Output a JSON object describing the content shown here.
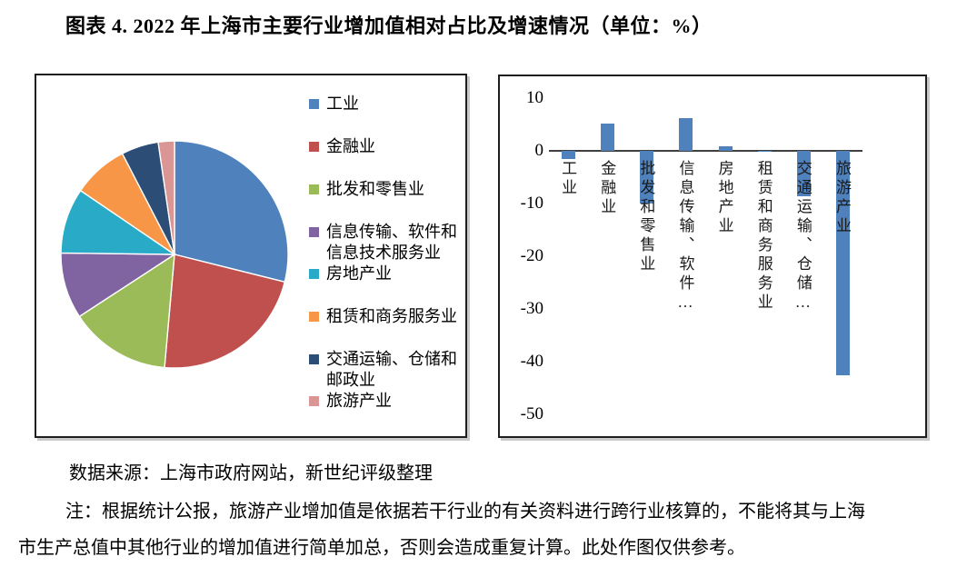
{
  "page": {
    "title": "图表 4. 2022 年上海市主要行业增加值相对占比及增速情况（单位：%）",
    "source": "数据来源：上海市政府网站，新世纪评级整理",
    "note_lines": [
      "注：根据统计公报，旅游产业增加值是依据若干行业的有关资料进行跨行业核算的，不能将其与上海",
      "市生产总值中其他行业的增加值进行简单加总，否则会造成重复计算。此处作图仅供参考。"
    ]
  },
  "chart_data": [
    {
      "type": "pie",
      "unit": "%",
      "direction": "clockwise",
      "start_angle_deg": 0,
      "legend_position": "right",
      "categories": [
        "工业",
        "金融业",
        "批发和零售业",
        "信息传输、软件和信息技术服务业",
        "房地产业",
        "租赁和商务服务业",
        "交通运输、仓储和邮政业",
        "旅游产业"
      ],
      "values": [
        28.9,
        22.5,
        14.4,
        9.4,
        9.3,
        7.9,
        5.3,
        2.3
      ],
      "colors": [
        "#4F81BD",
        "#C0504D",
        "#9BBB59",
        "#8064A2",
        "#29ABC7",
        "#F79646",
        "#2C4D75",
        "#D99694"
      ],
      "legend_lines": [
        [
          "工业"
        ],
        [
          "金融业"
        ],
        [
          "批发和零售业"
        ],
        [
          "信息传输、软件和",
          "信息技术服务业"
        ],
        [
          "房地产业"
        ],
        [
          "租赁和商务服务业"
        ],
        [
          "交通运输、仓储和",
          "邮政业"
        ],
        [
          "旅游产业"
        ]
      ]
    },
    {
      "type": "bar",
      "unit": "%",
      "categories": [
        "工业",
        "金融业",
        "批发和零售业",
        "信息传输、软件…",
        "房地产业",
        "租赁和商务服务业",
        "交通运输、仓储…",
        "旅游产业"
      ],
      "values": [
        -1.5,
        5.2,
        -10.0,
        6.2,
        0.9,
        -0.2,
        -8.6,
        -42.5
      ],
      "bar_color": "#4F81BD",
      "ylim": [
        -50,
        10
      ],
      "yticks": [
        "10",
        "0",
        "-10",
        "-20",
        "-30",
        "-40",
        "-50"
      ],
      "grid": false,
      "axis_line_color": "#404040",
      "xlabel": "",
      "ylabel": ""
    }
  ]
}
